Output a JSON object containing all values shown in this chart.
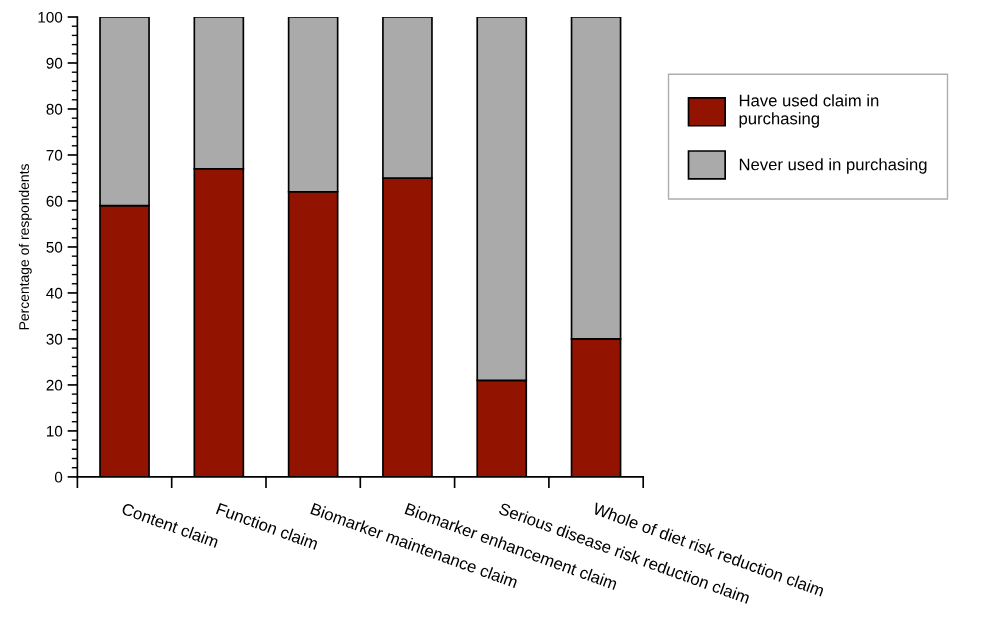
{
  "chart_data": {
    "type": "bar",
    "stacked": true,
    "ylabel": "Percentage of respondents",
    "categories": [
      "Content claim",
      "Function claim",
      "Biomarker maintenance claim",
      "Biomarker enhancement claim",
      "Serious disease risk reduction claim",
      "Whole of diet risk reduction claim"
    ],
    "series": [
      {
        "name": "Have used claim in\npurchasing",
        "color": "#921400",
        "values": [
          59,
          67,
          62,
          65,
          21,
          30
        ]
      },
      {
        "name": "Never used in purchasing",
        "color": "#aaaaaa",
        "values": [
          41,
          33,
          38,
          35,
          79,
          70
        ]
      }
    ],
    "ylim": [
      0,
      100
    ],
    "yticks": [
      0,
      10,
      20,
      30,
      40,
      50,
      60,
      70,
      80,
      90,
      100
    ],
    "grid": false,
    "legend": "right"
  }
}
